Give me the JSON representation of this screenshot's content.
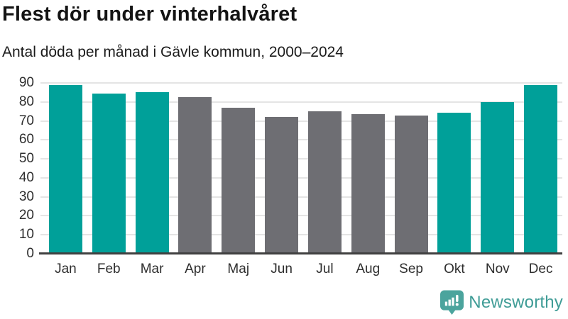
{
  "header": {
    "title": "Flest dör under vinterhalvåret",
    "subtitle": "Antal döda per månad i Gävle kommun, 2000–2024"
  },
  "chart_data": {
    "type": "bar",
    "title": "Flest dör under vinterhalvåret",
    "subtitle": "Antal döda per månad i Gävle kommun, 2000–2024",
    "categories": [
      "Jan",
      "Feb",
      "Mar",
      "Apr",
      "Maj",
      "Jun",
      "Jul",
      "Aug",
      "Sep",
      "Okt",
      "Nov",
      "Dec"
    ],
    "values": [
      89,
      84.5,
      85,
      82.5,
      77,
      72,
      75,
      73.5,
      73,
      74.5,
      80,
      89
    ],
    "highlighted": [
      true,
      true,
      true,
      false,
      false,
      false,
      false,
      false,
      false,
      true,
      true,
      true
    ],
    "colors": {
      "highlight": "#00A099",
      "default": "#6E6E73"
    },
    "xlabel": "",
    "ylabel": "",
    "ylim": [
      0,
      90
    ],
    "ytick_step": 10,
    "grid": "horizontal",
    "legend_position": "none"
  },
  "footer": {
    "brand": "Newsworthy",
    "brand_color": "#3F9C96",
    "icon": "newsworthy-chart-bubble-icon",
    "icon_color": "#4BA49D"
  }
}
